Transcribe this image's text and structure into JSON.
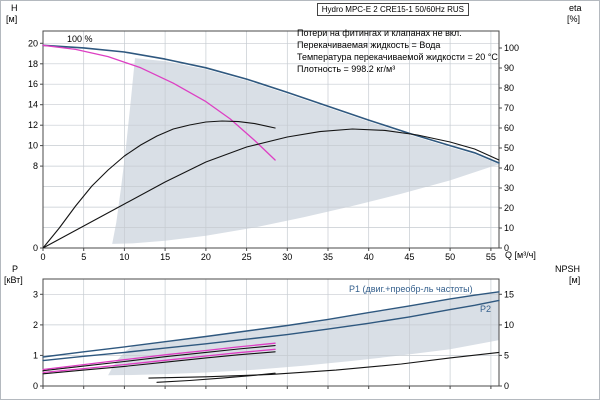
{
  "header": {
    "title": "Hydro MPC-E 2 CRE15-1 50/60Hz RUS"
  },
  "notes": [
    "Потери на фитингах и клапанах не вкл.",
    "Перекачиваемая жидкость = Вода",
    "Температура перекачиваемой жидкости = 20 °C",
    "Плотность = 998.2 кг/м³"
  ],
  "axis_labels": {
    "h": "H",
    "h_unit": "[м]",
    "eta": "eta",
    "eta_unit": "[%]",
    "q": "Q [м³/ч]",
    "p": "P",
    "p_unit": "[кВт]",
    "npsh": "NPSH",
    "npsh_unit": "[м]"
  },
  "annotations": {
    "speed": "100 %",
    "p1": "P1 (двиг.+преобр-ль частоты)",
    "p2": "P2"
  },
  "chart_data": [
    {
      "type": "line",
      "title": "Hydro MPC-E 2 CRE15-1 50/60Hz RUS",
      "xlabel": "Q [м³/ч]",
      "ylabel": "H [м]",
      "y2label": "eta [%]",
      "xlim": [
        0,
        56
      ],
      "ylim": [
        0,
        21.2
      ],
      "y2lim": [
        0,
        108.5
      ],
      "xticks": [
        0,
        5,
        10,
        15,
        20,
        25,
        30,
        35,
        40,
        45,
        50,
        55
      ],
      "yticks": [
        0,
        8,
        10,
        12,
        14,
        16,
        18,
        20
      ],
      "y2ticks": [
        0,
        10,
        20,
        30,
        40,
        50,
        60,
        70,
        80,
        90,
        100
      ],
      "ygrid": [
        2,
        4,
        6,
        8,
        10,
        12,
        14,
        16,
        18,
        20
      ],
      "xtick_labels": true,
      "series": [
        {
          "name": "hq-100pct-two-pumps",
          "axis": "y",
          "color": "#2f587f",
          "width": 1.6,
          "x": [
            0,
            5,
            10,
            15,
            20,
            25,
            30,
            35,
            40,
            45,
            50,
            53,
            56
          ],
          "y": [
            19.8,
            19.55,
            19.15,
            18.45,
            17.6,
            16.5,
            15.2,
            13.85,
            12.5,
            11.2,
            10.0,
            9.3,
            8.3
          ]
        },
        {
          "name": "hq-setpoint-one-pump",
          "axis": "y",
          "color": "#dd3fc3",
          "width": 1.3,
          "x": [
            0,
            4,
            8,
            12,
            16,
            20,
            23,
            26,
            28.5
          ],
          "y": [
            19.8,
            19.4,
            18.7,
            17.6,
            16.1,
            14.3,
            12.6,
            10.5,
            8.6
          ]
        },
        {
          "name": "eta-one-pump",
          "axis": "y2",
          "color": "#141414",
          "width": 1.1,
          "x": [
            0,
            2,
            4,
            6,
            8,
            10,
            12,
            14,
            16,
            18,
            20,
            22,
            24,
            26,
            28.5
          ],
          "y": [
            0,
            10,
            21,
            31,
            39,
            46,
            51.5,
            56,
            59.5,
            61.5,
            63,
            63.5,
            63.2,
            62.2,
            60
          ]
        },
        {
          "name": "eta-two-pumps",
          "axis": "y2",
          "color": "#141414",
          "width": 1.1,
          "x": [
            0,
            5,
            10,
            15,
            20,
            25,
            30,
            34,
            38,
            42,
            46,
            50,
            53,
            56
          ],
          "y": [
            0,
            11,
            22,
            33,
            43,
            50.5,
            55.5,
            58.2,
            59.5,
            58.8,
            56.5,
            53,
            49.5,
            44
          ]
        }
      ],
      "envelope": {
        "color": "#d9dfe6",
        "points_x": [
          8.5,
          9,
          9.6,
          10.2,
          10.8,
          11.3,
          15,
          20,
          25,
          30,
          35,
          40,
          45,
          50,
          53,
          56,
          50,
          44,
          38,
          32,
          26,
          20,
          15,
          11,
          8.5
        ],
        "points_y": [
          0.4,
          2.5,
          6,
          10,
          14.5,
          18.55,
          18.25,
          17.45,
          16.35,
          15.05,
          13.7,
          12.35,
          11.05,
          9.85,
          9.15,
          8.2,
          6.6,
          5.3,
          4.1,
          3.0,
          2.0,
          1.2,
          0.7,
          0.45,
          0.4
        ]
      }
    },
    {
      "type": "line",
      "title": "Power and NPSH curves",
      "xlabel": "",
      "ylabel": "P [кВт]",
      "y2label": "NPSH [м]",
      "xlim": [
        0,
        56
      ],
      "ylim": [
        0,
        3.5
      ],
      "y2lim": [
        0,
        17.5
      ],
      "xticks": [
        0,
        5,
        10,
        15,
        20,
        25,
        30,
        35,
        40,
        45,
        50,
        55
      ],
      "yticks": [
        0,
        1,
        2,
        3
      ],
      "y2ticks": [
        0,
        5,
        10,
        15
      ],
      "ygrid": [
        1,
        2,
        3
      ],
      "xtick_labels": false,
      "series": [
        {
          "name": "p1-two-pumps",
          "axis": "y",
          "color": "#2f587f",
          "width": 1.4,
          "x": [
            0,
            5,
            10,
            15,
            20,
            25,
            30,
            35,
            40,
            45,
            50,
            53,
            56
          ],
          "y": [
            0.95,
            1.12,
            1.28,
            1.45,
            1.62,
            1.8,
            1.98,
            2.18,
            2.4,
            2.62,
            2.85,
            2.97,
            3.08
          ]
        },
        {
          "name": "p2-two-pumps",
          "axis": "y",
          "color": "#2f587f",
          "width": 1.4,
          "x": [
            0,
            5,
            10,
            15,
            20,
            25,
            30,
            35,
            40,
            45,
            50,
            53,
            56
          ],
          "y": [
            0.83,
            0.97,
            1.1,
            1.24,
            1.38,
            1.53,
            1.68,
            1.86,
            2.05,
            2.26,
            2.5,
            2.64,
            2.8
          ]
        },
        {
          "name": "p1-one-pump-black",
          "axis": "y",
          "color": "#141414",
          "width": 1.1,
          "x": [
            0,
            5,
            10,
            15,
            20,
            24,
            28.5
          ],
          "y": [
            0.5,
            0.65,
            0.8,
            0.96,
            1.1,
            1.21,
            1.32
          ]
        },
        {
          "name": "p2-one-pump-black",
          "axis": "y",
          "color": "#141414",
          "width": 1.1,
          "x": [
            0,
            5,
            10,
            15,
            20,
            24,
            28.5
          ],
          "y": [
            0.4,
            0.52,
            0.64,
            0.78,
            0.92,
            1.02,
            1.12
          ]
        },
        {
          "name": "p1-one-pump",
          "axis": "y",
          "color": "#dd3fc3",
          "width": 1.3,
          "x": [
            0,
            5,
            10,
            15,
            20,
            24,
            28.5
          ],
          "y": [
            0.54,
            0.7,
            0.86,
            1.02,
            1.16,
            1.28,
            1.4
          ]
        },
        {
          "name": "p2-one-pump",
          "axis": "y",
          "color": "#dd3fc3",
          "width": 1.3,
          "x": [
            0,
            5,
            10,
            15,
            20,
            24,
            28.5
          ],
          "y": [
            0.44,
            0.57,
            0.7,
            0.84,
            0.98,
            1.09,
            1.2
          ]
        },
        {
          "name": "npsh-two-pumps",
          "axis": "y2",
          "color": "#141414",
          "width": 1.1,
          "x": [
            13,
            20,
            28,
            36,
            44,
            50,
            56
          ],
          "y": [
            1.3,
            1.5,
            1.9,
            2.6,
            3.6,
            4.6,
            5.5
          ]
        },
        {
          "name": "npsh-one-pump",
          "axis": "y2",
          "color": "#141414",
          "width": 1.1,
          "x": [
            14,
            18,
            22,
            26,
            28.5
          ],
          "y": [
            0.6,
            0.9,
            1.3,
            1.75,
            2.1
          ]
        }
      ],
      "envelope": {
        "color": "#d9dfe6",
        "points_x": [
          8,
          8.5,
          9.3,
          10.2,
          11,
          15,
          20,
          25,
          30,
          35,
          40,
          45,
          50,
          56,
          56,
          50,
          44,
          38,
          32,
          26,
          20,
          15,
          11,
          8
        ],
        "points_y": [
          0.35,
          0.6,
          0.9,
          1.15,
          1.31,
          1.45,
          1.62,
          1.8,
          1.98,
          2.18,
          2.4,
          2.62,
          2.85,
          3.08,
          1.5,
          1.2,
          1.0,
          0.82,
          0.66,
          0.53,
          0.44,
          0.39,
          0.36,
          0.35
        ]
      }
    }
  ]
}
